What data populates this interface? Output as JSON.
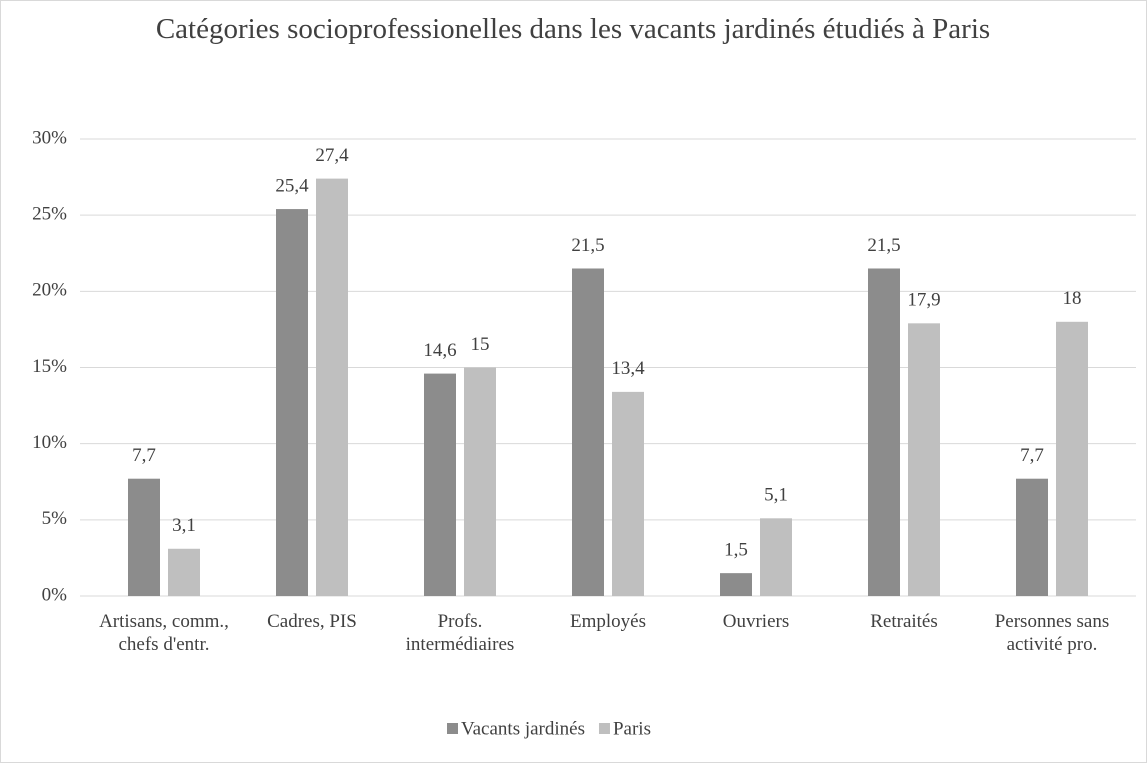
{
  "chart_data": {
    "type": "bar",
    "title": "Catégories socioprofessionelles dans les vacants jardinés étudiés à Paris",
    "categories": [
      "Artisans, comm., chefs d'entr.",
      "Cadres, PIS",
      "Profs. intermédiaires",
      "Employés",
      "Ouvriers",
      "Retraités",
      "Personnes sans activité pro."
    ],
    "series": [
      {
        "name": "Vacants jardinés",
        "color": "#8c8c8c",
        "values": [
          7.7,
          25.4,
          14.6,
          21.5,
          1.5,
          21.5,
          7.7
        ],
        "value_labels": [
          "7,7",
          "25,4",
          "14,6",
          "21,5",
          "1,5",
          "21,5",
          "7,7"
        ]
      },
      {
        "name": "Paris",
        "color": "#bfbfbf",
        "values": [
          3.1,
          27.4,
          15,
          13.4,
          5.1,
          17.9,
          18
        ],
        "value_labels": [
          "3,1",
          "27,4",
          "15",
          "13,4",
          "5,1",
          "17,9",
          "18"
        ]
      }
    ],
    "ylim": [
      0,
      30
    ],
    "yticks": [
      {
        "value": 0,
        "label": "0%"
      },
      {
        "value": 5,
        "label": "5%"
      },
      {
        "value": 10,
        "label": "10%"
      },
      {
        "value": 15,
        "label": "15%"
      },
      {
        "value": 20,
        "label": "20%"
      },
      {
        "value": 25,
        "label": "25%"
      },
      {
        "value": 30,
        "label": "30%"
      }
    ],
    "grid": true,
    "legend": "bottom"
  }
}
